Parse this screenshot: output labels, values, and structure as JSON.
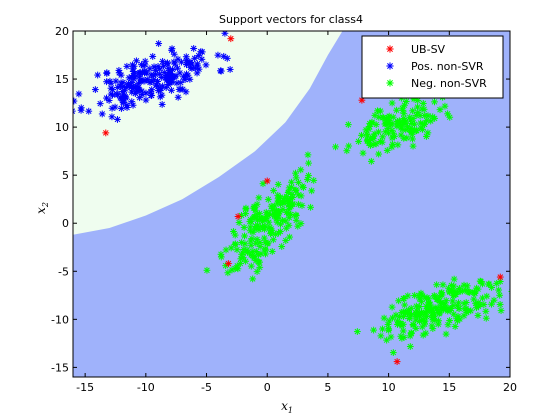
{
  "chart_data": {
    "type": "scatter",
    "title": "Support vectors for class4",
    "xlabel": "x",
    "xlabel_sub": "1",
    "ylabel": "x",
    "ylabel_sub": "2",
    "xlim": [
      -16,
      20
    ],
    "ylim": [
      -16,
      20
    ],
    "xticks": [
      -15,
      -10,
      -5,
      0,
      5,
      10,
      15,
      20
    ],
    "yticks": [
      -15,
      -10,
      -5,
      0,
      5,
      10,
      15,
      20
    ],
    "grid": false,
    "legend_position": "top-right",
    "region_colors": {
      "positive_region": "#effdef",
      "negative_region": "#9fb2fb"
    },
    "decision_boundary_approx": [
      [
        -16,
        -1.2
      ],
      [
        -13,
        -0.5
      ],
      [
        -10,
        0.8
      ],
      [
        -7,
        2.5
      ],
      [
        -4,
        4.8
      ],
      [
        -1,
        7.5
      ],
      [
        1.5,
        10.5
      ],
      [
        3.5,
        14
      ],
      [
        5,
        17.5
      ],
      [
        6.2,
        20
      ]
    ],
    "series": [
      {
        "name": "UB-SV",
        "color": "#ff0000",
        "marker": "asterisk",
        "points": [
          [
            -3,
            19.2
          ],
          [
            -13.3,
            9.4
          ],
          [
            7.8,
            12.8
          ],
          [
            0,
            4.4
          ],
          [
            -2.4,
            0.7
          ],
          [
            -3.2,
            -4.2
          ],
          [
            10.7,
            -14.4
          ],
          [
            19.2,
            -5.6
          ]
        ]
      },
      {
        "name": "Pos. non-SVR",
        "color": "#0000ff",
        "marker": "asterisk",
        "clusters": [
          {
            "center": [
              -9.5,
              15
            ],
            "spread": [
              2.6,
              1.6
            ],
            "count": 220,
            "corr": 0.6,
            "seed": 11
          }
        ]
      },
      {
        "name": "Neg. non-SVR",
        "color": "#00ff00",
        "marker": "asterisk",
        "clusters": [
          {
            "center": [
              10.5,
              10
            ],
            "spread": [
              1.8,
              1.3
            ],
            "count": 140,
            "corr": 0.5,
            "seed": 23
          },
          {
            "center": [
              0,
              0
            ],
            "spread": [
              1.6,
              2.6
            ],
            "count": 200,
            "corr": 0.7,
            "seed": 37
          },
          {
            "center": [
              14,
              -9
            ],
            "spread": [
              2.6,
              1.6
            ],
            "count": 220,
            "corr": 0.65,
            "seed": 51
          }
        ]
      }
    ]
  }
}
